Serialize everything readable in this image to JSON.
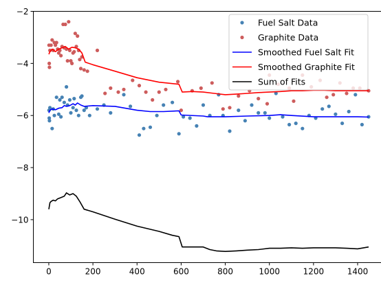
{
  "chart_data": {
    "type": "scatter",
    "title": "",
    "xlabel": "",
    "ylabel": "",
    "xlim": [
      -70,
      1520
    ],
    "ylim": [
      -11.65,
      -2.0
    ],
    "x_ticks": [
      0,
      200,
      400,
      600,
      800,
      1000,
      1200,
      1400
    ],
    "y_ticks": [
      -10,
      -8,
      -6,
      -4,
      -2
    ],
    "grid": false,
    "legend": {
      "placement": "top-right",
      "entries": [
        "Fuel Salt Data",
        "Graphite Data",
        "Smoothed Fuel Salt Fit",
        "Smoothed Graphite Fit",
        "Sum of Fits"
      ]
    },
    "colors": {
      "fuel_points": "#4682b4",
      "graphite_points": "#cd5c5c",
      "fuel_fit": "#0000ff",
      "graphite_fit": "#ff0000",
      "sum_fit": "#000000"
    },
    "scatter_series": [
      {
        "name": "Fuel Salt Data",
        "marker": "circle",
        "points": [
          [
            1,
            -5.8
          ],
          [
            2,
            -6.1
          ],
          [
            3,
            -6.2
          ],
          [
            5,
            -5.7
          ],
          [
            15,
            -6.5
          ],
          [
            20,
            -5.75
          ],
          [
            25,
            -6.0
          ],
          [
            35,
            -5.3
          ],
          [
            45,
            -5.95
          ],
          [
            50,
            -5.4
          ],
          [
            55,
            -6.05
          ],
          [
            60,
            -5.3
          ],
          [
            70,
            -5.5
          ],
          [
            80,
            -4.9
          ],
          [
            85,
            -5.6
          ],
          [
            95,
            -5.4
          ],
          [
            100,
            -5.9
          ],
          [
            110,
            -5.7
          ],
          [
            115,
            -5.35
          ],
          [
            125,
            -5.8
          ],
          [
            135,
            -6.0
          ],
          [
            145,
            -5.3
          ],
          [
            150,
            -5.25
          ],
          [
            160,
            -5.8
          ],
          [
            170,
            -5.7
          ],
          [
            185,
            -6.0
          ],
          [
            220,
            -5.75
          ],
          [
            250,
            -5.6
          ],
          [
            280,
            -5.9
          ],
          [
            340,
            -5.2
          ],
          [
            370,
            -5.65
          ],
          [
            410,
            -6.75
          ],
          [
            430,
            -6.5
          ],
          [
            460,
            -6.45
          ],
          [
            490,
            -6.0
          ],
          [
            520,
            -5.6
          ],
          [
            560,
            -5.5
          ],
          [
            590,
            -6.7
          ],
          [
            610,
            -6.05
          ],
          [
            640,
            -6.1
          ],
          [
            670,
            -6.4
          ],
          [
            700,
            -5.6
          ],
          [
            730,
            -6.0
          ],
          [
            770,
            -5.2
          ],
          [
            790,
            -6.0
          ],
          [
            820,
            -6.6
          ],
          [
            860,
            -5.8
          ],
          [
            890,
            -6.2
          ],
          [
            920,
            -5.6
          ],
          [
            950,
            -5.9
          ],
          [
            980,
            -5.9
          ],
          [
            1000,
            -6.1
          ],
          [
            1030,
            -5.15
          ],
          [
            1060,
            -6.05
          ],
          [
            1090,
            -6.35
          ],
          [
            1120,
            -6.3
          ],
          [
            1150,
            -6.5
          ],
          [
            1180,
            -6.0
          ],
          [
            1210,
            -6.1
          ],
          [
            1240,
            -5.75
          ],
          [
            1270,
            -5.65
          ],
          [
            1300,
            -5.95
          ],
          [
            1330,
            -6.3
          ],
          [
            1360,
            -5.85
          ],
          [
            1390,
            -5.2
          ],
          [
            1420,
            -6.35
          ],
          [
            1450,
            -6.05
          ]
        ]
      },
      {
        "name": "Graphite Data",
        "marker": "circle",
        "points": [
          [
            1,
            -3.3
          ],
          [
            2,
            -4.0
          ],
          [
            3,
            -4.15
          ],
          [
            5,
            -3.5
          ],
          [
            10,
            -3.3
          ],
          [
            15,
            -3.1
          ],
          [
            20,
            -3.5
          ],
          [
            25,
            -3.2
          ],
          [
            30,
            -3.3
          ],
          [
            35,
            -3.2
          ],
          [
            40,
            -3.45
          ],
          [
            45,
            -3.6
          ],
          [
            50,
            -3.5
          ],
          [
            55,
            -3.7
          ],
          [
            60,
            -3.35
          ],
          [
            65,
            -2.5
          ],
          [
            70,
            -3.4
          ],
          [
            75,
            -2.5
          ],
          [
            80,
            -3.45
          ],
          [
            85,
            -3.9
          ],
          [
            90,
            -2.4
          ],
          [
            95,
            -3.5
          ],
          [
            100,
            -3.9
          ],
          [
            105,
            -4.0
          ],
          [
            110,
            -3.6
          ],
          [
            115,
            -3.55
          ],
          [
            120,
            -2.85
          ],
          [
            125,
            -3.35
          ],
          [
            130,
            -2.95
          ],
          [
            135,
            -3.5
          ],
          [
            140,
            -3.85
          ],
          [
            145,
            -4.2
          ],
          [
            150,
            -3.75
          ],
          [
            160,
            -4.25
          ],
          [
            175,
            -4.3
          ],
          [
            220,
            -3.5
          ],
          [
            255,
            -5.15
          ],
          [
            280,
            -4.95
          ],
          [
            315,
            -5.1
          ],
          [
            340,
            -5.0
          ],
          [
            380,
            -4.65
          ],
          [
            410,
            -4.85
          ],
          [
            440,
            -5.1
          ],
          [
            470,
            -5.4
          ],
          [
            500,
            -5.1
          ],
          [
            530,
            -5.0
          ],
          [
            585,
            -4.7
          ],
          [
            600,
            -5.8
          ],
          [
            650,
            -5.05
          ],
          [
            690,
            -4.95
          ],
          [
            740,
            -4.75
          ],
          [
            790,
            -5.75
          ],
          [
            820,
            -5.7
          ],
          [
            860,
            -5.25
          ],
          [
            910,
            -5.05
          ],
          [
            950,
            -5.35
          ],
          [
            990,
            -5.55
          ],
          [
            1000,
            -4.45
          ],
          [
            1040,
            -4.8
          ],
          [
            1090,
            -4.95
          ],
          [
            1110,
            -5.45
          ],
          [
            1150,
            -4.45
          ],
          [
            1190,
            -4.9
          ],
          [
            1230,
            -4.65
          ],
          [
            1260,
            -5.3
          ],
          [
            1290,
            -5.2
          ],
          [
            1320,
            -4.75
          ],
          [
            1350,
            -5.15
          ],
          [
            1380,
            -4.95
          ],
          [
            1410,
            -4.95
          ],
          [
            1450,
            -5.05
          ]
        ]
      }
    ],
    "line_series": [
      {
        "name": "Smoothed Fuel Salt Fit",
        "points": [
          [
            0,
            -5.9
          ],
          [
            5,
            -5.8
          ],
          [
            15,
            -5.75
          ],
          [
            30,
            -5.78
          ],
          [
            45,
            -5.72
          ],
          [
            60,
            -5.7
          ],
          [
            70,
            -5.62
          ],
          [
            80,
            -5.65
          ],
          [
            95,
            -5.62
          ],
          [
            110,
            -5.55
          ],
          [
            120,
            -5.6
          ],
          [
            130,
            -5.52
          ],
          [
            145,
            -5.6
          ],
          [
            160,
            -5.65
          ],
          [
            200,
            -5.62
          ],
          [
            300,
            -5.65
          ],
          [
            400,
            -5.8
          ],
          [
            460,
            -5.85
          ],
          [
            520,
            -5.85
          ],
          [
            590,
            -5.82
          ],
          [
            600,
            -5.98
          ],
          [
            700,
            -6.02
          ],
          [
            720,
            -6.05
          ],
          [
            800,
            -6.05
          ],
          [
            900,
            -6.02
          ],
          [
            1000,
            -6.0
          ],
          [
            1050,
            -5.97
          ],
          [
            1100,
            -6.0
          ],
          [
            1200,
            -6.05
          ],
          [
            1300,
            -6.05
          ],
          [
            1400,
            -6.05
          ],
          [
            1450,
            -6.06
          ]
        ]
      },
      {
        "name": "Smoothed Graphite Fit",
        "points": [
          [
            0,
            -3.65
          ],
          [
            5,
            -3.55
          ],
          [
            15,
            -3.45
          ],
          [
            30,
            -3.55
          ],
          [
            45,
            -3.45
          ],
          [
            60,
            -3.4
          ],
          [
            75,
            -3.35
          ],
          [
            90,
            -3.45
          ],
          [
            105,
            -3.38
          ],
          [
            120,
            -3.4
          ],
          [
            135,
            -3.45
          ],
          [
            150,
            -3.6
          ],
          [
            165,
            -3.95
          ],
          [
            200,
            -4.05
          ],
          [
            300,
            -4.3
          ],
          [
            400,
            -4.55
          ],
          [
            500,
            -4.72
          ],
          [
            590,
            -4.8
          ],
          [
            605,
            -5.1
          ],
          [
            650,
            -5.08
          ],
          [
            700,
            -5.1
          ],
          [
            750,
            -5.15
          ],
          [
            800,
            -5.2
          ],
          [
            850,
            -5.18
          ],
          [
            900,
            -5.15
          ],
          [
            950,
            -5.12
          ],
          [
            1000,
            -5.1
          ],
          [
            1050,
            -5.08
          ],
          [
            1100,
            -5.05
          ],
          [
            1150,
            -5.05
          ],
          [
            1200,
            -5.03
          ],
          [
            1250,
            -5.03
          ],
          [
            1300,
            -5.05
          ],
          [
            1350,
            -5.05
          ],
          [
            1400,
            -5.05
          ],
          [
            1450,
            -5.05
          ]
        ]
      },
      {
        "name": "Sum of Fits",
        "points": [
          [
            0,
            -9.6
          ],
          [
            5,
            -9.35
          ],
          [
            10,
            -9.3
          ],
          [
            20,
            -9.25
          ],
          [
            30,
            -9.28
          ],
          [
            40,
            -9.2
          ],
          [
            55,
            -9.15
          ],
          [
            70,
            -9.1
          ],
          [
            80,
            -8.97
          ],
          [
            95,
            -9.05
          ],
          [
            110,
            -9.0
          ],
          [
            125,
            -9.1
          ],
          [
            140,
            -9.3
          ],
          [
            160,
            -9.6
          ],
          [
            200,
            -9.7
          ],
          [
            300,
            -9.98
          ],
          [
            400,
            -10.25
          ],
          [
            500,
            -10.45
          ],
          [
            560,
            -10.6
          ],
          [
            590,
            -10.65
          ],
          [
            605,
            -11.05
          ],
          [
            650,
            -11.05
          ],
          [
            700,
            -11.05
          ],
          [
            730,
            -11.15
          ],
          [
            760,
            -11.2
          ],
          [
            800,
            -11.22
          ],
          [
            850,
            -11.2
          ],
          [
            900,
            -11.17
          ],
          [
            950,
            -11.15
          ],
          [
            1000,
            -11.1
          ],
          [
            1050,
            -11.1
          ],
          [
            1100,
            -11.08
          ],
          [
            1150,
            -11.1
          ],
          [
            1200,
            -11.08
          ],
          [
            1250,
            -11.08
          ],
          [
            1300,
            -11.08
          ],
          [
            1350,
            -11.1
          ],
          [
            1400,
            -11.12
          ],
          [
            1450,
            -11.05
          ]
        ]
      }
    ]
  }
}
